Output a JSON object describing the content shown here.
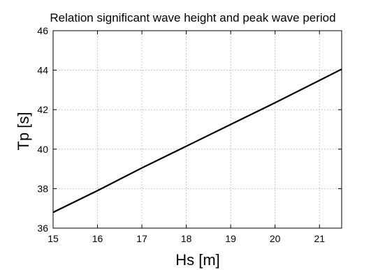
{
  "chart_data": {
    "type": "line",
    "title": "Relation significant wave height and peak wave period",
    "xlabel": "Hs [m]",
    "ylabel": "Tp [s]",
    "xlim": [
      15,
      21.5
    ],
    "ylim": [
      36,
      46
    ],
    "xticks": [
      15,
      16,
      17,
      18,
      19,
      20,
      21
    ],
    "yticks": [
      36,
      38,
      40,
      42,
      44,
      46
    ],
    "grid": true,
    "series": [
      {
        "x": [
          15,
          16,
          17,
          18,
          19,
          20,
          21.5
        ],
        "y": [
          36.8,
          37.9,
          39.05,
          40.15,
          41.25,
          42.35,
          44.05
        ]
      }
    ],
    "colors": {
      "line": "#000000",
      "grid": "#c8c8c8",
      "background": "#ffffff"
    }
  }
}
